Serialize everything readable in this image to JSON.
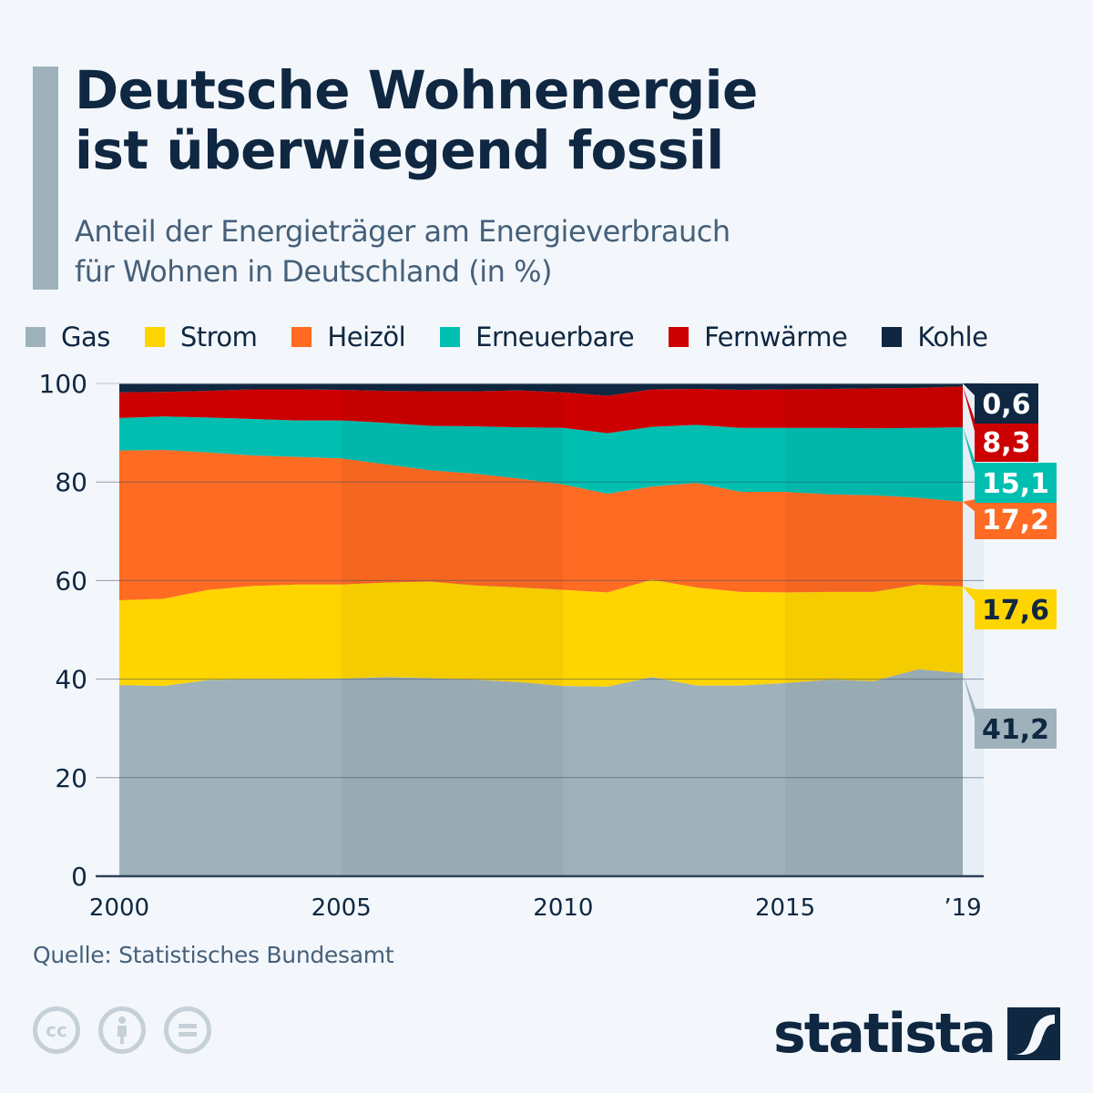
{
  "header": {
    "title_line1": "Deutsche Wohnenergie",
    "title_line2": "ist überwiegend fossil",
    "subtitle_line1": "Anteil der Energieträger am Energieverbrauch",
    "subtitle_line2": "für Wohnen in Deutschland (in %)",
    "accent_color": "#9fb2bb"
  },
  "legend": [
    {
      "label": "Gas",
      "color": "#9fb2bb"
    },
    {
      "label": "Strom",
      "color": "#fed500"
    },
    {
      "label": "Heizöl",
      "color": "#ff6b23"
    },
    {
      "label": "Erneuerbare",
      "color": "#00bfb0"
    },
    {
      "label": "Fernwärme",
      "color": "#cc0000"
    },
    {
      "label": "Kohle",
      "color": "#0f2741"
    }
  ],
  "chart_data": {
    "type": "area",
    "stacked": true,
    "title": "Deutsche Wohnenergie ist überwiegend fossil",
    "subtitle": "Anteil der Energieträger am Energieverbrauch für Wohnen in Deutschland (in %)",
    "xlabel": "",
    "ylabel": "",
    "x": [
      2000,
      2001,
      2002,
      2003,
      2004,
      2005,
      2006,
      2007,
      2008,
      2009,
      2010,
      2011,
      2012,
      2013,
      2014,
      2015,
      2016,
      2017,
      2018,
      2019
    ],
    "x_ticks": [
      2000,
      2005,
      2010,
      2015,
      2019
    ],
    "x_tick_labels": [
      "2000",
      "2005",
      "2010",
      "2015",
      "’19"
    ],
    "y_ticks": [
      0,
      20,
      40,
      60,
      80,
      100
    ],
    "ylim": [
      0,
      100
    ],
    "grid": true,
    "legend_position": "top",
    "series": [
      {
        "name": "Gas",
        "color": "#9fb2bb",
        "label_text_color": "#0f2741",
        "values": [
          38.8,
          38.6,
          39.8,
          40.0,
          39.9,
          40.1,
          40.4,
          40.2,
          39.9,
          39.4,
          38.6,
          38.5,
          40.4,
          38.7,
          38.7,
          39.2,
          39.9,
          39.6,
          42.0,
          41.2
        ],
        "end_label": "41,2"
      },
      {
        "name": "Strom",
        "color": "#fed500",
        "label_text_color": "#0f2741",
        "values": [
          17.2,
          17.7,
          18.3,
          18.9,
          19.3,
          19.1,
          19.2,
          19.6,
          19.1,
          19.2,
          19.5,
          19.1,
          19.8,
          19.9,
          19.0,
          18.4,
          17.8,
          18.1,
          17.2,
          17.6
        ],
        "end_label": "17,6"
      },
      {
        "name": "Heizöl",
        "color": "#ff6b23",
        "label_text_color": "#ffffff",
        "values": [
          30.4,
          30.2,
          27.9,
          26.5,
          25.9,
          25.6,
          24.0,
          22.6,
          22.7,
          22.1,
          21.4,
          20.0,
          18.9,
          21.2,
          20.3,
          20.4,
          19.8,
          19.6,
          17.6,
          17.2
        ],
        "end_label": "17,2"
      },
      {
        "name": "Erneuerbare",
        "color": "#00bfb0",
        "label_text_color": "#ffffff",
        "values": [
          6.6,
          6.8,
          7.1,
          7.4,
          7.4,
          7.7,
          8.4,
          9.0,
          9.6,
          10.4,
          11.5,
          12.3,
          12.1,
          11.8,
          13.0,
          13.0,
          13.5,
          13.6,
          14.2,
          15.1
        ],
        "end_label": "15,1"
      },
      {
        "name": "Fernwärme",
        "color": "#cc0000",
        "label_text_color": "#ffffff",
        "values": [
          5.2,
          5.0,
          5.4,
          6.0,
          6.3,
          6.2,
          6.5,
          7.0,
          7.1,
          7.5,
          7.2,
          7.6,
          7.6,
          7.3,
          7.7,
          7.8,
          7.9,
          8.1,
          8.1,
          8.3
        ],
        "end_label": "8,3"
      },
      {
        "name": "Kohle",
        "color": "#0f2741",
        "label_text_color": "#ffffff",
        "values": [
          1.8,
          1.7,
          1.5,
          1.2,
          1.2,
          1.3,
          1.5,
          1.6,
          1.6,
          1.4,
          1.8,
          2.5,
          1.2,
          1.1,
          1.3,
          1.2,
          1.1,
          1.0,
          0.9,
          0.6
        ],
        "end_label": "0,6"
      }
    ],
    "shaded_periods": [
      [
        2005,
        2010
      ],
      [
        2015,
        2019
      ]
    ]
  },
  "footer": {
    "source": "Quelle: Statistisches Bundesamt",
    "license_icons": [
      "cc-icon",
      "attribution-icon",
      "no-derivatives-icon"
    ],
    "cc_text": "cc",
    "brand": "statista"
  }
}
